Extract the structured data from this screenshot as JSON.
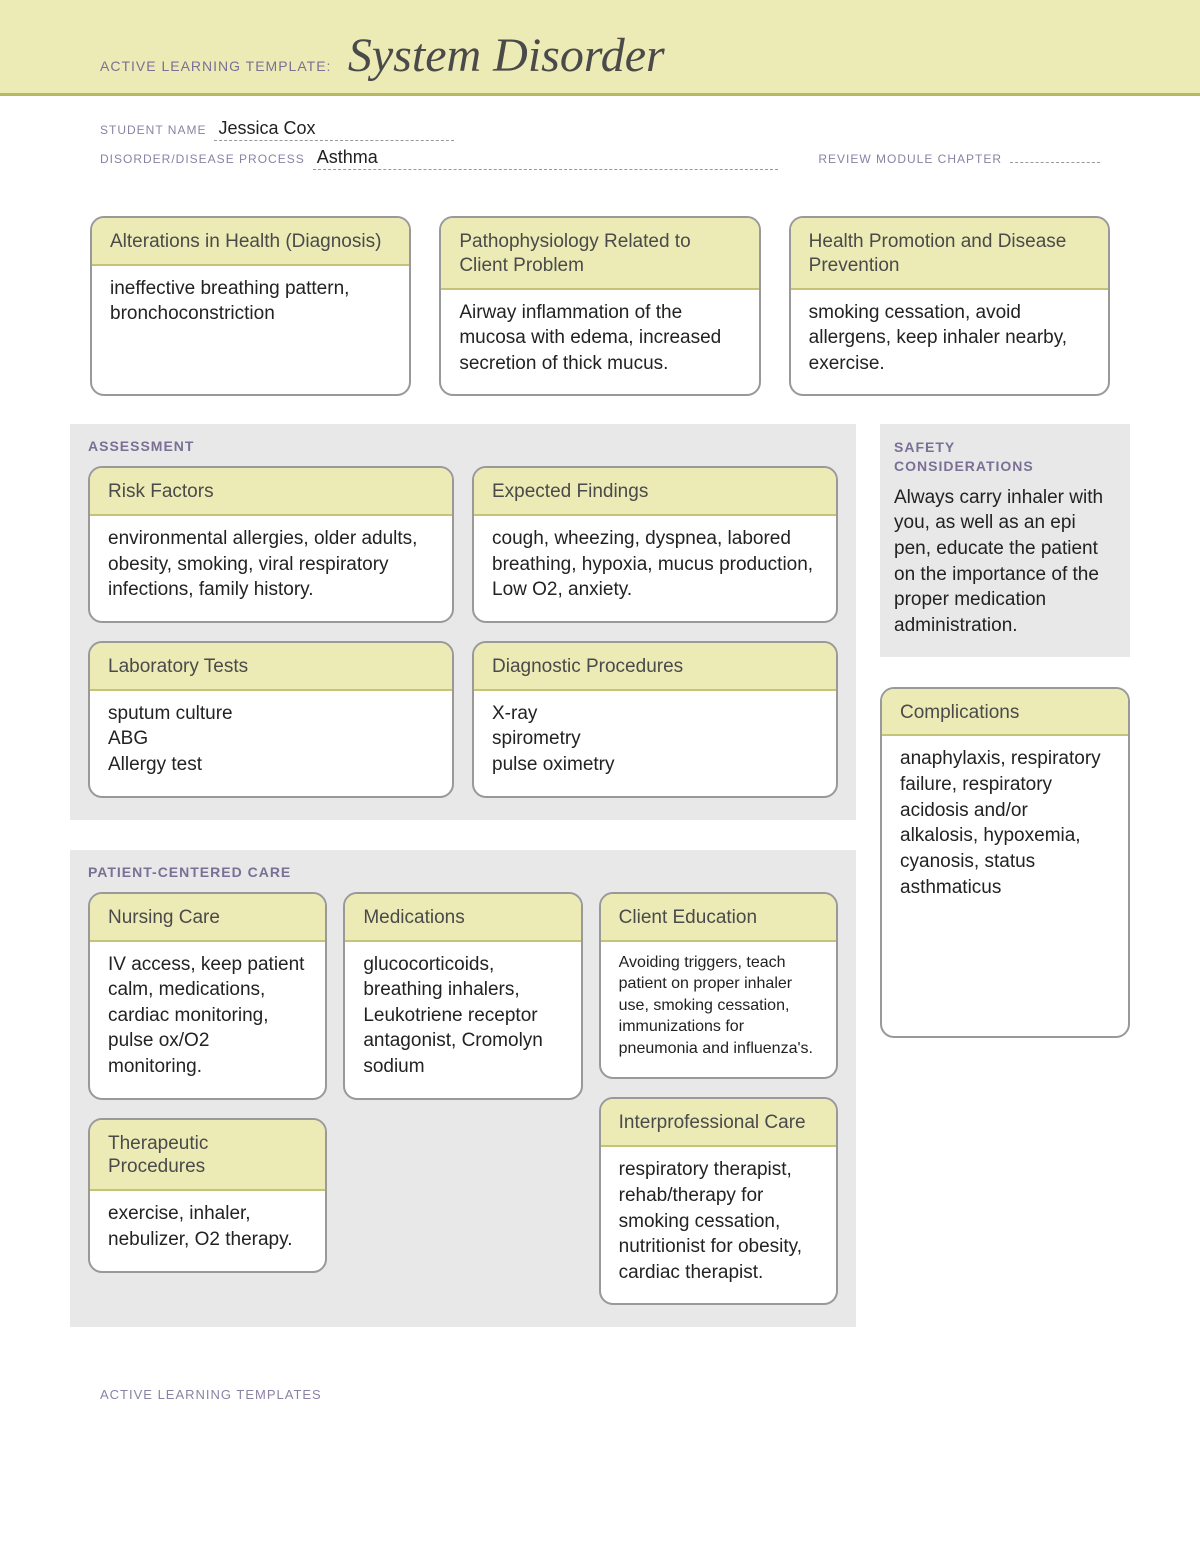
{
  "header": {
    "prefix": "ACTIVE LEARNING TEMPLATE:",
    "title": "System Disorder"
  },
  "meta": {
    "student_label": "STUDENT NAME",
    "student_name": "Jessica Cox",
    "disorder_label": "DISORDER/DISEASE PROCESS",
    "disorder_value": "Asthma",
    "review_label": "REVIEW MODULE CHAPTER",
    "review_value": ""
  },
  "top_cards": [
    {
      "title": "Alterations in\nHealth (Diagnosis)",
      "body": "ineffective breathing pattern, bronchoconstriction"
    },
    {
      "title": "Pathophysiology Related to Client Problem",
      "body": "Airway inflammation of the mucosa with edema, increased secretion of thick mucus."
    },
    {
      "title": "Health Promotion and Disease Prevention",
      "body": "smoking cessation, avoid allergens, keep inhaler nearby, exercise."
    }
  ],
  "assessment": {
    "title": "ASSESSMENT",
    "cards": [
      {
        "title": "Risk Factors",
        "body": "environmental allergies, older adults, obesity, smoking, viral respiratory infections, family history."
      },
      {
        "title": "Expected Findings",
        "body": "cough, wheezing, dyspnea, labored breathing, hypoxia, mucus production, Low O2, anxiety."
      },
      {
        "title": "Laboratory Tests",
        "body": "sputum culture\nABG\nAllergy test"
      },
      {
        "title": "Diagnostic Procedures",
        "body": "X-ray\nspirometry\npulse oximetry"
      }
    ]
  },
  "safety": {
    "title": "SAFETY\nCONSIDERATIONS",
    "body": "Always carry inhaler with you, as well as an epi pen, educate the patient on the importance of the proper medication administration."
  },
  "pcc": {
    "title": "PATIENT-CENTERED CARE",
    "col1": [
      {
        "title": "Nursing Care",
        "body": "IV access, keep patient calm, medications, cardiac monitoring, pulse ox/O2 monitoring."
      },
      {
        "title": "Therapeutic Procedures",
        "body": "exercise, inhaler, nebulizer, O2 therapy."
      }
    ],
    "col2": [
      {
        "title": "Medications",
        "body": "glucocorticoids, breathing inhalers, Leukotriene receptor antagonist, Cromolyn sodium"
      }
    ],
    "col3": [
      {
        "title": "Client Education",
        "body": "Avoiding triggers, teach patient on proper inhaler use, smoking cessation, immunizations for pneumonia and influenza's.",
        "small": true
      },
      {
        "title": "Interprofessional Care",
        "body": "respiratory therapist, rehab/therapy for smoking cessation, nutritionist for obesity, cardiac therapist."
      }
    ]
  },
  "complications": {
    "title": "Complications",
    "body": "anaphylaxis, respiratory failure, respiratory acidosis and/or alkalosis, hypoxemia, cyanosis, status asthmaticus"
  },
  "footer": "ACTIVE LEARNING TEMPLATES",
  "colors": {
    "header_bg": "#ecebb6",
    "header_rule": "#b8b85e",
    "section_bg": "#e8e8e8",
    "card_border": "#999999",
    "label_color": "#7a7095"
  }
}
